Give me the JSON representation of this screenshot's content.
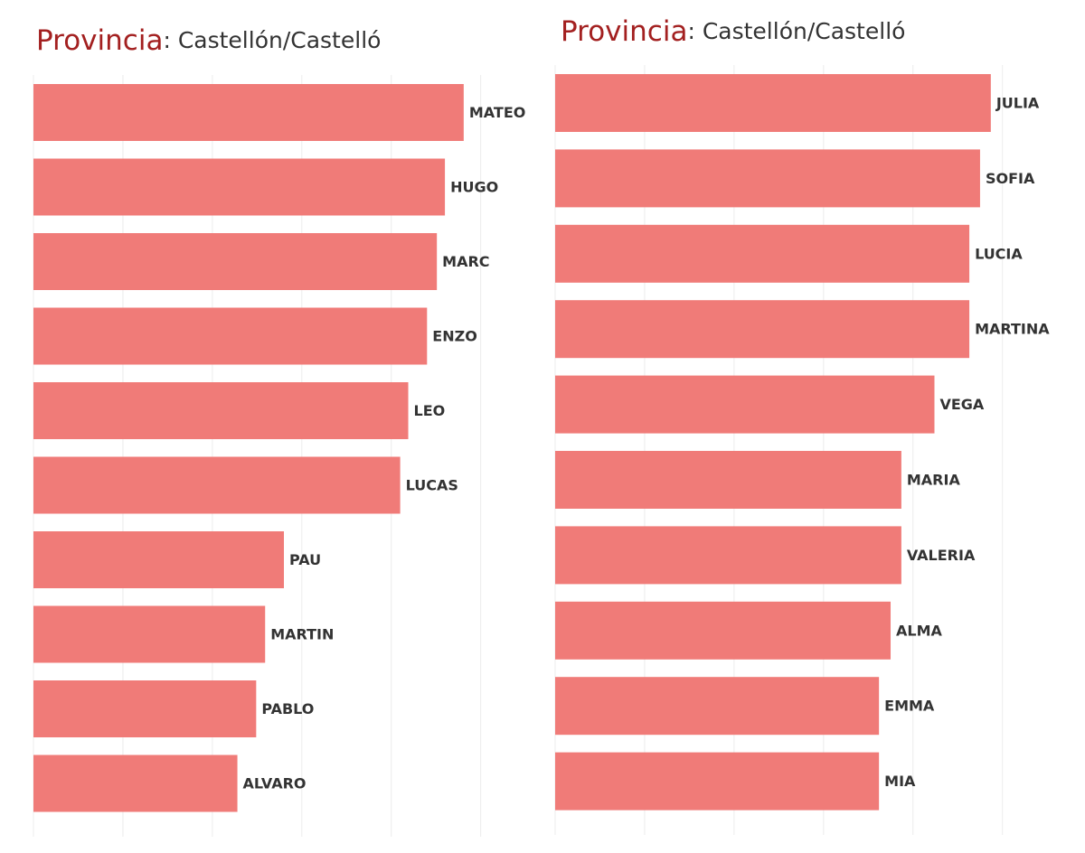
{
  "chart_data": [
    {
      "type": "bar",
      "orientation": "horizontal",
      "title": "Provincia",
      "subtitle": ": Castellón/Castelló",
      "categories": [
        "MATEO",
        "HUGO",
        "MARC",
        "ENZO",
        "LEO",
        "LUCAS",
        "PAU",
        "MARTIN",
        "PABLO",
        "ALVARO"
      ],
      "values": [
        4.81,
        4.6,
        4.51,
        4.4,
        4.19,
        4.1,
        2.8,
        2.59,
        2.49,
        2.28
      ],
      "color": "#f07b78",
      "xlim": [
        0,
        5.6
      ],
      "xticks": [
        0,
        1,
        2,
        3,
        4,
        5
      ],
      "grid": true
    },
    {
      "type": "bar",
      "orientation": "horizontal",
      "title": "Provincia",
      "subtitle": ": Castellón/Castelló",
      "categories": [
        "JULIA",
        "SOFIA",
        "LUCIA",
        "MARTINA",
        "VEGA",
        "MARIA",
        "VALERIA",
        "ALMA",
        "EMMA",
        "MIA"
      ],
      "values": [
        4.87,
        4.75,
        4.63,
        4.63,
        4.24,
        3.87,
        3.87,
        3.75,
        3.62,
        3.62
      ],
      "color": "#f07b78",
      "xlim": [
        0,
        5.64
      ],
      "xticks": [
        0,
        1,
        2,
        3,
        4,
        5
      ],
      "grid": true
    }
  ]
}
